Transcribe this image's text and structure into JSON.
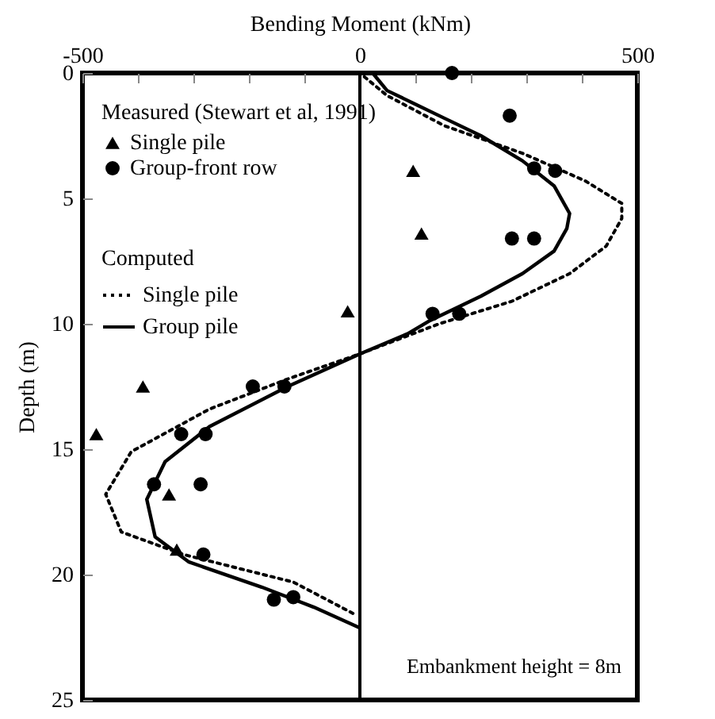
{
  "chart_data": {
    "type": "scatter",
    "xlabel": "Bending Moment (kNm)",
    "ylabel": "Depth (m)",
    "xlim": [
      -500,
      500
    ],
    "xticks": [
      -500,
      {
        "value": -400,
        "label": null
      },
      {
        "value": -300,
        "label": null
      },
      {
        "value": -200,
        "label": null
      },
      {
        "value": -100,
        "label": null
      },
      0,
      {
        "value": 100,
        "label": null
      },
      {
        "value": 200,
        "label": null
      },
      {
        "value": 300,
        "label": null
      },
      {
        "value": 400,
        "label": null
      },
      500
    ],
    "ylim": [
      25,
      0
    ],
    "yticks": [
      0,
      5,
      10,
      15,
      20,
      25
    ],
    "grid": false,
    "legend": "top left",
    "annotations": [
      "Measured (Stewart et al, 1991)",
      "Computed",
      "Embankment height = 8m"
    ],
    "ref_lines": [
      {
        "axis": "x",
        "value": 0,
        "color": "#000000"
      }
    ],
    "series": [
      {
        "name": "Single pile",
        "marker": "triangle",
        "color": "#000000",
        "x": [
          96,
          111,
          -22,
          -391,
          -475,
          -344,
          -330
        ],
        "values": [
          3.9,
          6.4,
          9.5,
          12.5,
          14.4,
          16.8,
          19.0
        ]
      },
      {
        "name": "Group-front row",
        "marker": "circle",
        "color": "#000000",
        "x": [
          166,
          270,
          314,
          352,
          274,
          314,
          131,
          179,
          -193,
          -136,
          -322,
          -278,
          -371,
          -287,
          -282,
          -155,
          -120
        ],
        "values": [
          0,
          1.7,
          3.8,
          3.9,
          6.6,
          6.6,
          9.6,
          9.6,
          12.5,
          12.5,
          14.4,
          14.4,
          16.4,
          16.4,
          19.2,
          21.0,
          20.9
        ]
      },
      {
        "name": "Single pile",
        "type": "line",
        "line_style": "dotted",
        "color": "#000000",
        "x": [
          8,
          49,
          152,
          293,
          406,
          472,
          472,
          444,
          378,
          274,
          143,
          0,
          -130,
          -271,
          -412,
          -458,
          -430,
          -318,
          -120,
          -8
        ],
        "values": [
          0.15,
          0.9,
          2.1,
          3.2,
          4.3,
          5.2,
          5.8,
          6.9,
          8.0,
          9.1,
          10.0,
          11.2,
          12.2,
          13.4,
          15.1,
          16.8,
          18.3,
          19.2,
          20.3,
          21.6
        ]
      },
      {
        "name": "Group pile",
        "type": "line",
        "line_style": "solid",
        "color": "#000000",
        "x": [
          23,
          49,
          96,
          152,
          218,
          293,
          350,
          378,
          373,
          350,
          293,
          218,
          124,
          86,
          0,
          -130,
          -271,
          -351,
          -384,
          -369,
          -308,
          -177,
          -83,
          -3
        ],
        "values": [
          0,
          0.7,
          1.2,
          1.8,
          2.5,
          3.5,
          4.5,
          5.6,
          6.2,
          7.1,
          8.0,
          8.9,
          9.9,
          10.4,
          11.2,
          12.5,
          14.1,
          15.5,
          17.0,
          18.5,
          19.5,
          20.5,
          21.3,
          22.1
        ]
      }
    ]
  }
}
